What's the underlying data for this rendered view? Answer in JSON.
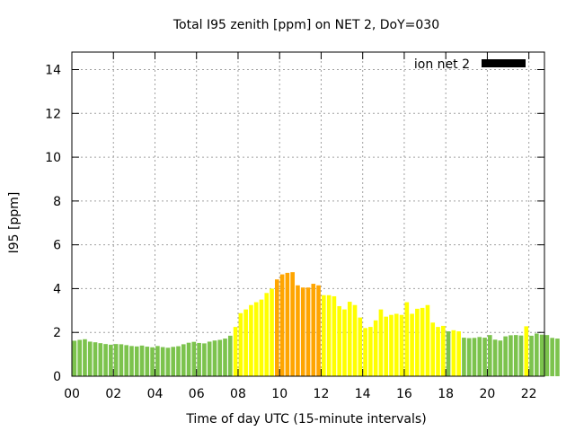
{
  "chart_data": {
    "type": "bar",
    "title": "Total I95 zenith [ppm] on NET 2, DoY=030",
    "xlabel": "Time of day UTC (15-minute intervals)",
    "ylabel": "I95 [ppm]",
    "xlim": [
      0,
      22.75
    ],
    "ylim": [
      0,
      14.8
    ],
    "x_ticks": [
      "00",
      "02",
      "04",
      "06",
      "08",
      "10",
      "12",
      "14",
      "16",
      "18",
      "20",
      "22"
    ],
    "x_tick_values": [
      0,
      2,
      4,
      6,
      8,
      10,
      12,
      14,
      16,
      18,
      20,
      22
    ],
    "y_ticks": [
      0,
      2,
      4,
      6,
      8,
      10,
      12,
      14
    ],
    "grid": true,
    "legend_position": "top-right",
    "interval_hours": 0.25,
    "level_colors": {
      "low": "#7cc34d",
      "mid": "#ffff00",
      "high": "#ffa500"
    },
    "series": [
      {
        "name": "ion net 2",
        "color": "#000000",
        "values": [
          1.62,
          1.66,
          1.69,
          1.58,
          1.55,
          1.51,
          1.47,
          1.44,
          1.47,
          1.46,
          1.42,
          1.38,
          1.36,
          1.4,
          1.35,
          1.32,
          1.38,
          1.33,
          1.3,
          1.34,
          1.37,
          1.46,
          1.53,
          1.57,
          1.52,
          1.5,
          1.58,
          1.63,
          1.66,
          1.72,
          1.85,
          2.25,
          2.88,
          3.05,
          3.25,
          3.38,
          3.5,
          3.8,
          4.0,
          4.42,
          4.65,
          4.72,
          4.75,
          4.15,
          4.05,
          4.05,
          4.22,
          4.15,
          3.7,
          3.7,
          3.65,
          3.2,
          3.05,
          3.4,
          3.25,
          2.68,
          2.2,
          2.25,
          2.55,
          3.05,
          2.72,
          2.8,
          2.85,
          2.8,
          3.38,
          2.85,
          3.08,
          3.12,
          3.25,
          2.45,
          2.25,
          2.3,
          2.05,
          2.1,
          2.05,
          1.76,
          1.74,
          1.75,
          1.79,
          1.76,
          1.88,
          1.67,
          1.63,
          1.82,
          1.87,
          1.88,
          1.86,
          2.28,
          1.85,
          1.95,
          1.9,
          1.88,
          1.75,
          1.72
        ],
        "levels": [
          "low",
          "low",
          "low",
          "low",
          "low",
          "low",
          "low",
          "low",
          "low",
          "low",
          "low",
          "low",
          "low",
          "low",
          "low",
          "low",
          "low",
          "low",
          "low",
          "low",
          "low",
          "low",
          "low",
          "low",
          "low",
          "low",
          "low",
          "low",
          "low",
          "low",
          "low",
          "mid",
          "mid",
          "mid",
          "mid",
          "mid",
          "mid",
          "mid",
          "mid",
          "high",
          "high",
          "high",
          "high",
          "high",
          "high",
          "high",
          "high",
          "high",
          "mid",
          "mid",
          "mid",
          "mid",
          "mid",
          "mid",
          "mid",
          "mid",
          "mid",
          "mid",
          "mid",
          "mid",
          "mid",
          "mid",
          "mid",
          "mid",
          "mid",
          "mid",
          "mid",
          "mid",
          "mid",
          "mid",
          "mid",
          "mid",
          "low",
          "mid",
          "mid",
          "low",
          "low",
          "low",
          "low",
          "low",
          "low",
          "low",
          "low",
          "low",
          "low",
          "low",
          "low",
          "mid",
          "low",
          "low",
          "low",
          "low",
          "low",
          "low"
        ]
      }
    ]
  }
}
